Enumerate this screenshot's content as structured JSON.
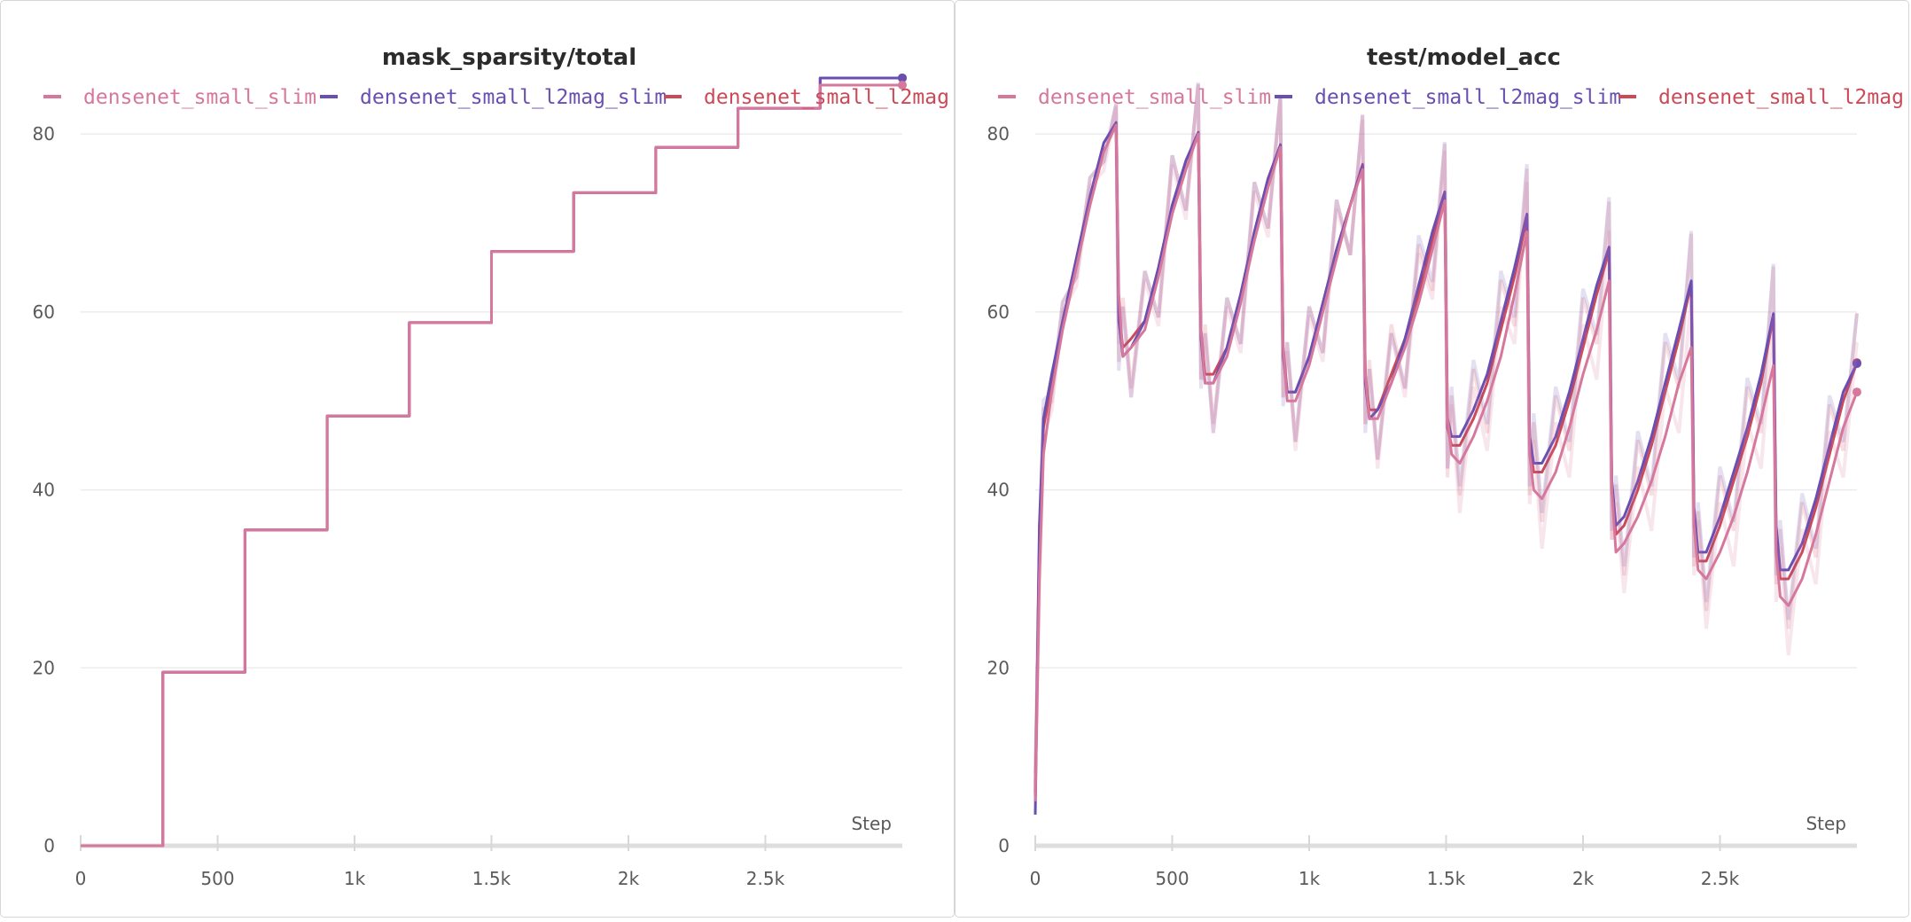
{
  "series_colors": {
    "densenet_small_slim": "#d6779c",
    "densenet_small_l2mag_slim": "#6a4fb2",
    "densenet_small_l2mag": "#cc4a57"
  },
  "chart_data": [
    {
      "type": "line",
      "title": "mask_sparsity/total",
      "xlabel": "Step",
      "ylabel": "",
      "xlim": [
        0,
        3000
      ],
      "ylim": [
        0,
        85
      ],
      "x_ticks": [
        0,
        500,
        1000,
        1500,
        2000,
        2500
      ],
      "x_tick_labels": [
        "0",
        "500",
        "1k",
        "1.5k",
        "2k",
        "2.5k"
      ],
      "y_ticks": [
        0,
        20,
        40,
        60,
        80
      ],
      "y_tick_labels": [
        "0",
        "20",
        "40",
        "60",
        "80"
      ],
      "grid": true,
      "legend_position": "top",
      "series": [
        {
          "name": "densenet_small_slim",
          "step": true,
          "x": [
            0,
            300,
            600,
            900,
            1200,
            1500,
            1800,
            2100,
            2400,
            2700,
            3000
          ],
          "y": [
            0,
            19.5,
            35.5,
            48.3,
            58.8,
            66.8,
            73.4,
            78.5,
            82.9,
            85.5,
            85.5
          ]
        },
        {
          "name": "densenet_small_l2mag_slim",
          "step": true,
          "x": [
            0,
            300,
            600,
            900,
            1200,
            1500,
            1800,
            2100,
            2400,
            2700,
            3000
          ],
          "y": [
            0,
            19.5,
            35.5,
            48.3,
            58.8,
            66.8,
            73.4,
            78.5,
            82.9,
            86.3,
            86.3
          ]
        },
        {
          "name": "densenet_small_l2mag",
          "step": true,
          "x": [
            0,
            300,
            600,
            900,
            1200,
            1500,
            1800,
            2100,
            2400,
            2700,
            3000
          ],
          "y": [
            0,
            19.5,
            35.5,
            48.3,
            58.8,
            66.8,
            73.4,
            78.5,
            82.9,
            86.3,
            86.3
          ]
        }
      ]
    },
    {
      "type": "line",
      "title": "test/model_acc",
      "xlabel": "Step",
      "ylabel": "",
      "xlim": [
        0,
        3000
      ],
      "ylim": [
        0,
        85
      ],
      "x_ticks": [
        0,
        500,
        1000,
        1500,
        2000,
        2500
      ],
      "x_tick_labels": [
        "0",
        "500",
        "1k",
        "1.5k",
        "2k",
        "2.5k"
      ],
      "y_ticks": [
        0,
        20,
        40,
        60,
        80
      ],
      "y_tick_labels": [
        "0",
        "20",
        "40",
        "60",
        "80"
      ],
      "grid": true,
      "legend_position": "top",
      "series": [
        {
          "name": "densenet_small_slim",
          "x": [
            0,
            15,
            30,
            60,
            100,
            150,
            200,
            250,
            295,
            305,
            320,
            350,
            400,
            450,
            500,
            550,
            595,
            605,
            620,
            650,
            700,
            750,
            800,
            850,
            895,
            905,
            920,
            950,
            1000,
            1050,
            1100,
            1150,
            1195,
            1205,
            1220,
            1250,
            1300,
            1350,
            1400,
            1450,
            1495,
            1505,
            1520,
            1550,
            1600,
            1650,
            1700,
            1750,
            1795,
            1805,
            1820,
            1850,
            1900,
            1950,
            2000,
            2050,
            2095,
            2105,
            2120,
            2150,
            2200,
            2250,
            2300,
            2350,
            2395,
            2405,
            2420,
            2450,
            2500,
            2550,
            2600,
            2650,
            2695,
            2705,
            2720,
            2750,
            2800,
            2850,
            2900,
            2950,
            3000
          ],
          "y": [
            5,
            30,
            44,
            51,
            58,
            65,
            72,
            78,
            81,
            62,
            55,
            56,
            58,
            64,
            71,
            76,
            80,
            58,
            52,
            52,
            55,
            61,
            68,
            74,
            78.5,
            56,
            50,
            50,
            54,
            60,
            66,
            72,
            76,
            53,
            48,
            48,
            52,
            56,
            61,
            67,
            72.5,
            48,
            44,
            43,
            46,
            50,
            55,
            62,
            69,
            44,
            40,
            39,
            42,
            47,
            53,
            58,
            63.5,
            40,
            33,
            34,
            37,
            41,
            46,
            52,
            56,
            36,
            31,
            30,
            33,
            37,
            42,
            48,
            54,
            33,
            28,
            27,
            30,
            35,
            41,
            47,
            51
          ]
        },
        {
          "name": "densenet_small_l2mag_slim",
          "x": [
            0,
            15,
            30,
            60,
            100,
            150,
            200,
            250,
            295,
            305,
            320,
            350,
            400,
            450,
            500,
            550,
            595,
            605,
            620,
            650,
            700,
            750,
            800,
            850,
            895,
            905,
            920,
            950,
            1000,
            1050,
            1100,
            1150,
            1195,
            1205,
            1220,
            1250,
            1300,
            1350,
            1400,
            1450,
            1495,
            1505,
            1520,
            1550,
            1600,
            1650,
            1700,
            1750,
            1795,
            1805,
            1820,
            1850,
            1900,
            1950,
            2000,
            2050,
            2095,
            2105,
            2120,
            2150,
            2200,
            2250,
            2300,
            2350,
            2395,
            2405,
            2420,
            2450,
            2500,
            2550,
            2600,
            2650,
            2695,
            2705,
            2720,
            2750,
            2800,
            2850,
            2900,
            2950,
            3000
          ],
          "y": [
            3.5,
            36,
            48,
            53,
            59,
            66,
            73,
            79,
            81.3,
            59,
            55,
            56,
            59,
            65,
            72,
            77,
            80.2,
            57,
            52,
            52,
            56,
            62,
            69,
            75,
            78.8,
            55,
            51,
            51,
            55,
            61,
            67,
            72,
            76.5,
            52,
            48,
            49,
            52,
            57,
            63,
            69,
            73.5,
            48,
            46,
            46,
            49,
            53,
            59,
            65,
            71,
            46,
            43,
            43,
            46,
            51,
            57,
            63,
            67.3,
            41,
            36,
            37,
            41,
            46,
            52,
            58,
            63.5,
            38,
            33,
            33,
            37,
            42,
            47,
            53,
            59.8,
            36,
            31,
            31,
            34,
            39,
            45,
            51,
            54.2
          ]
        },
        {
          "name": "densenet_small_l2mag",
          "x": [
            0,
            15,
            30,
            60,
            100,
            150,
            200,
            250,
            295,
            305,
            320,
            350,
            400,
            450,
            500,
            550,
            595,
            605,
            620,
            650,
            700,
            750,
            800,
            850,
            895,
            905,
            920,
            950,
            1000,
            1050,
            1100,
            1150,
            1195,
            1205,
            1220,
            1250,
            1300,
            1350,
            1400,
            1450,
            1495,
            1505,
            1520,
            1550,
            1600,
            1650,
            1700,
            1750,
            1795,
            1805,
            1820,
            1850,
            1900,
            1950,
            2000,
            2050,
            2095,
            2105,
            2120,
            2150,
            2200,
            2250,
            2300,
            2350,
            2395,
            2405,
            2420,
            2450,
            2500,
            2550,
            2600,
            2650,
            2695,
            2705,
            2720,
            2750,
            2800,
            2850,
            2900,
            2950,
            3000
          ],
          "y": [
            6,
            34,
            47,
            52,
            59,
            66,
            73,
            79,
            81.2,
            60,
            56,
            57,
            59,
            65,
            72,
            77,
            80,
            58,
            53,
            53,
            56,
            62,
            69,
            75,
            78.7,
            56,
            51,
            51,
            55,
            61,
            67,
            72,
            76.6,
            53,
            49,
            49,
            53,
            57,
            62,
            68,
            73.3,
            47,
            45,
            45,
            48,
            52,
            58,
            64,
            70.5,
            45,
            42,
            42,
            45,
            50,
            56,
            62,
            66.8,
            40,
            35,
            36,
            40,
            45,
            51,
            57,
            63.2,
            37,
            32,
            32,
            36,
            41,
            46,
            52,
            59.5,
            35,
            30,
            30,
            33,
            38,
            44,
            50,
            54.3
          ]
        }
      ]
    }
  ]
}
